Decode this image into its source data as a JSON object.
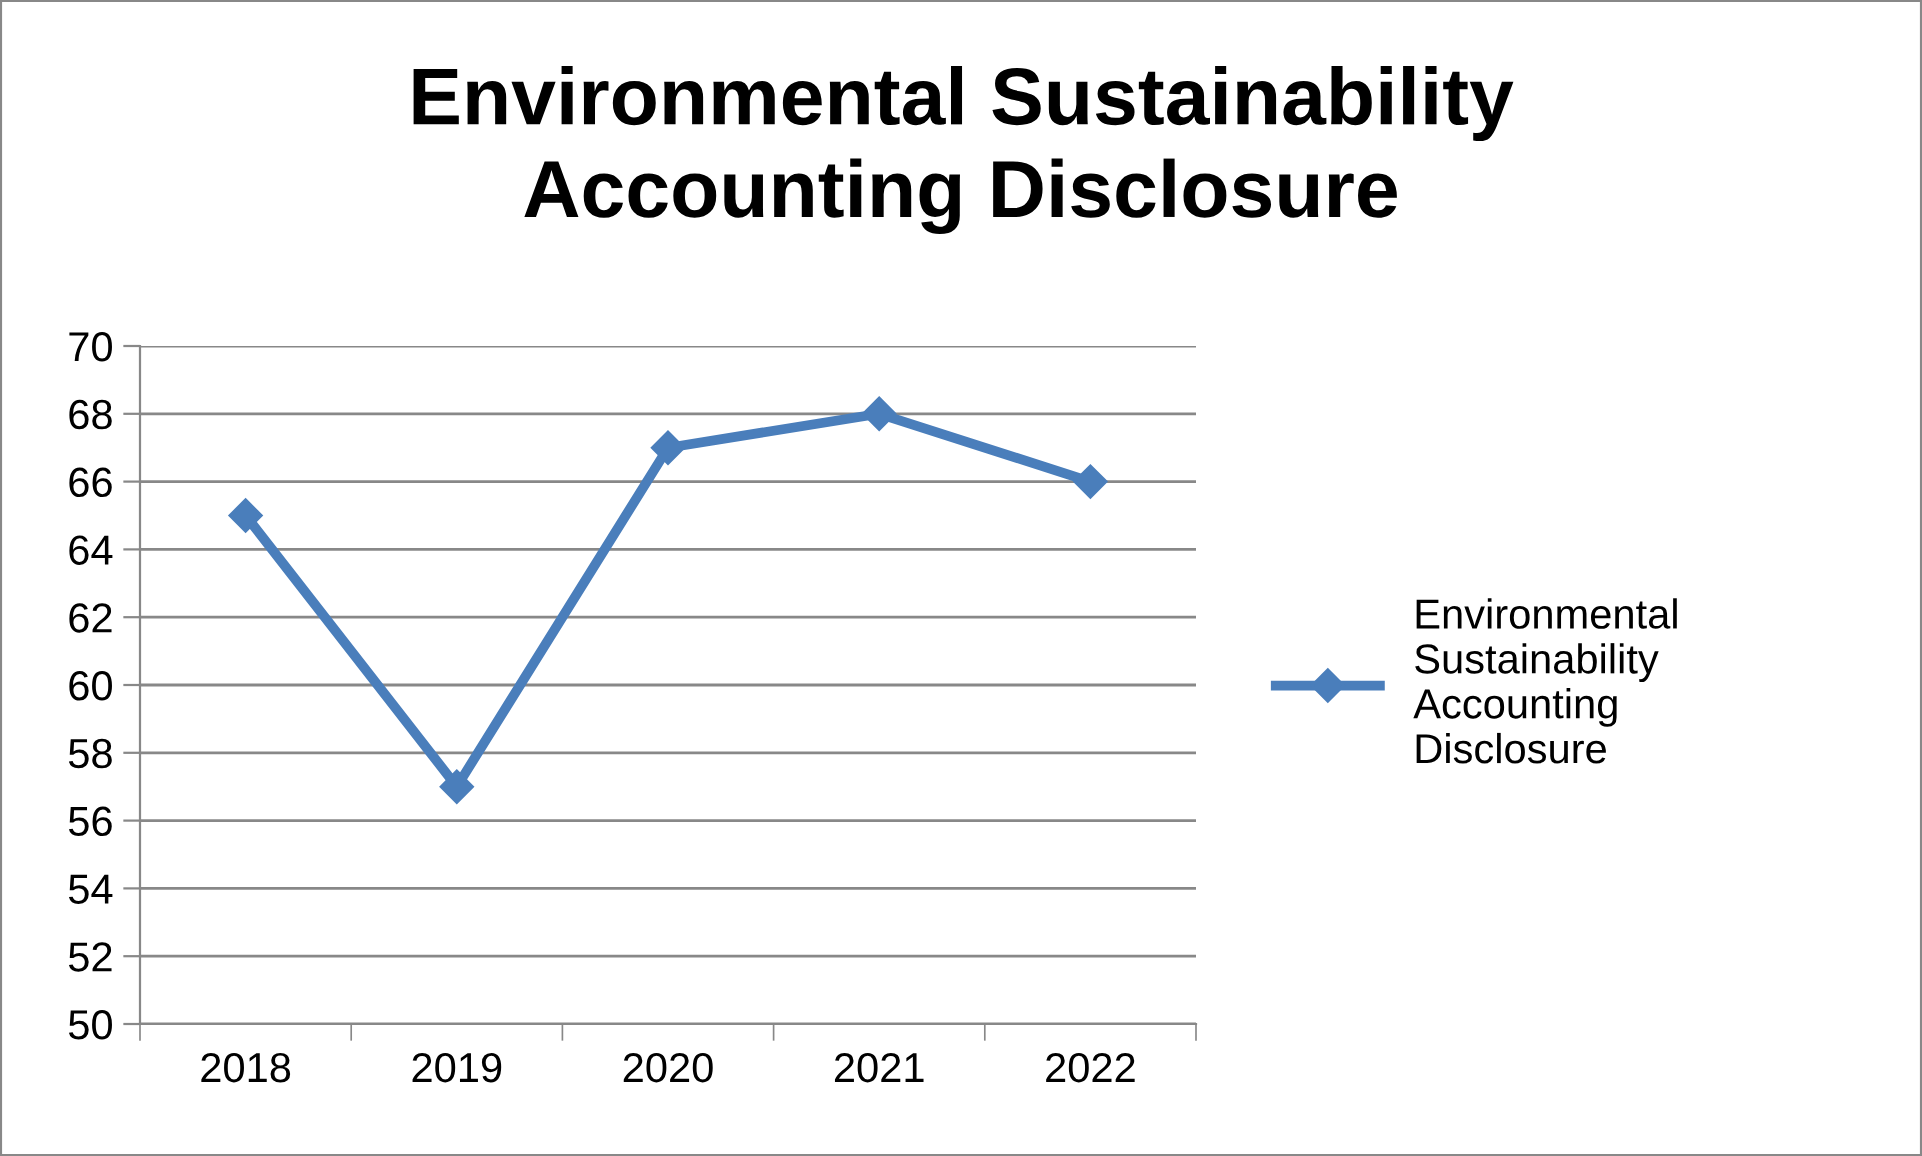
{
  "chart_data": {
    "type": "line",
    "title": "Environmental Sustainability Accounting Disclosure",
    "categories": [
      "2018",
      "2019",
      "2020",
      "2021",
      "2022"
    ],
    "series": [
      {
        "name": "Environmental Sustainability Accounting Disclosure",
        "color": "#4a7ebb",
        "values": [
          65,
          57,
          67,
          68,
          66
        ]
      }
    ],
    "ylim": [
      50,
      70
    ],
    "yticks": [
      50,
      52,
      54,
      56,
      58,
      60,
      62,
      64,
      66,
      68,
      70
    ],
    "grid": "y",
    "legend": "right",
    "marker": "diamond",
    "line_style": "solid"
  }
}
